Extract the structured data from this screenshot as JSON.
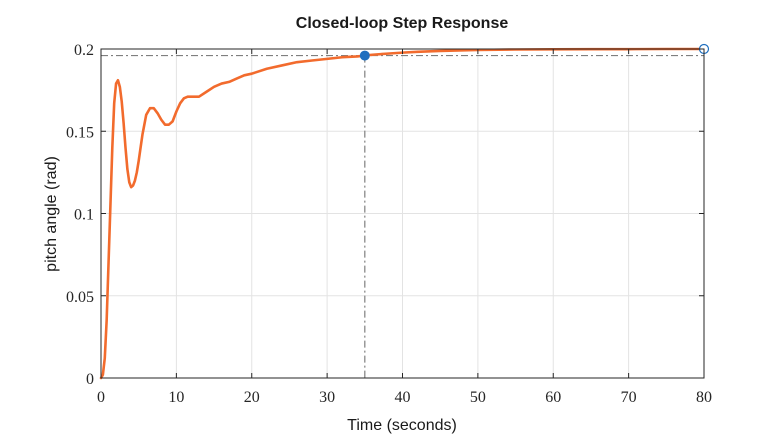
{
  "chart_data": {
    "type": "line",
    "title": "Closed-loop Step Response",
    "xlabel": "Time (seconds)",
    "ylabel": "pitch angle (rad)",
    "xlim": [
      0,
      80
    ],
    "ylim": [
      0,
      0.2
    ],
    "grid": true,
    "x_ticks": [
      0,
      10,
      20,
      30,
      40,
      50,
      60,
      70,
      80
    ],
    "x_tick_labels": [
      "0",
      "10",
      "20",
      "30",
      "40",
      "50",
      "60",
      "70",
      "80"
    ],
    "y_ticks": [
      0,
      0.05,
      0.1,
      0.15,
      0.2
    ],
    "y_tick_labels": [
      "0",
      "0.05",
      "0.1",
      "0.15",
      "0.2"
    ],
    "series": [
      {
        "color": "#f26b2d",
        "x": [
          0,
          0.25,
          0.5,
          0.75,
          1.0,
          1.25,
          1.5,
          1.75,
          2.0,
          2.25,
          2.5,
          2.75,
          3.0,
          3.25,
          3.5,
          3.75,
          4.0,
          4.25,
          4.5,
          4.75,
          5.0,
          5.25,
          5.5,
          6.0,
          6.5,
          7.0,
          7.5,
          8.0,
          8.5,
          9.0,
          9.5,
          10.0,
          10.5,
          11.0,
          11.5,
          12.0,
          13.0,
          14.0,
          15.0,
          16.0,
          17.0,
          18.0,
          19.0,
          20.0,
          22.0,
          24.0,
          26.0,
          28.0,
          30.0,
          32.0,
          34.0,
          35.0,
          36.0,
          38.0,
          40.0,
          42.0,
          45.0,
          50.0,
          55.0,
          60.0,
          65.0,
          70.0,
          75.0,
          80.0
        ],
        "y": [
          0.0,
          0.002,
          0.012,
          0.035,
          0.07,
          0.105,
          0.14,
          0.167,
          0.179,
          0.181,
          0.177,
          0.168,
          0.155,
          0.14,
          0.127,
          0.119,
          0.116,
          0.117,
          0.12,
          0.125,
          0.132,
          0.14,
          0.148,
          0.16,
          0.164,
          0.164,
          0.161,
          0.157,
          0.154,
          0.154,
          0.156,
          0.162,
          0.167,
          0.17,
          0.171,
          0.171,
          0.171,
          0.174,
          0.177,
          0.179,
          0.18,
          0.182,
          0.184,
          0.185,
          0.188,
          0.19,
          0.192,
          0.193,
          0.194,
          0.195,
          0.1955,
          0.196,
          0.1965,
          0.1972,
          0.1978,
          0.1983,
          0.1988,
          0.1994,
          0.1997,
          0.1998,
          0.1999,
          0.1999,
          0.2,
          0.2
        ]
      }
    ],
    "settling_marker": {
      "x": 35.0,
      "y": 0.196,
      "color": "#1f6fbf"
    },
    "final_value_marker": {
      "x": 80.0,
      "y": 0.2,
      "color": "#1f6fbf"
    },
    "reference_lines": {
      "x": 35.0,
      "y": 0.196,
      "color": "#7f7f7f"
    }
  }
}
